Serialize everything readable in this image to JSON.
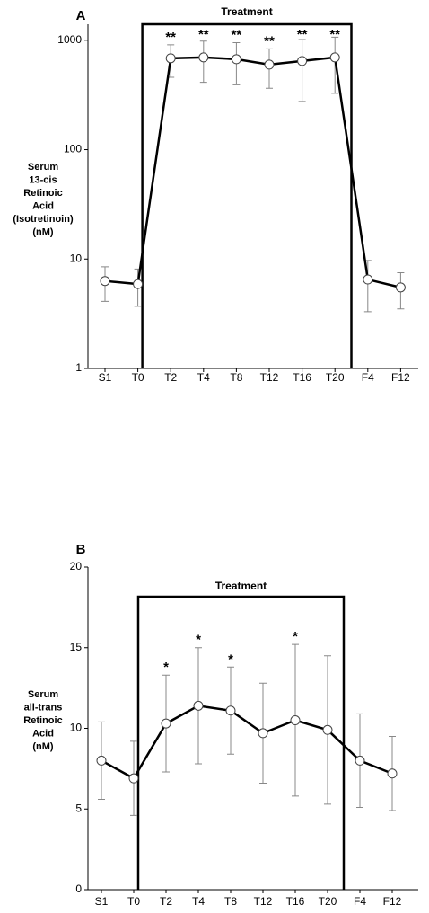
{
  "chart_data": [
    {
      "type": "line",
      "panel": "A",
      "box_label": "Treatment",
      "y_label_lines": [
        "Serum",
        "13-cis",
        "Retinoic",
        "Acid",
        "(Isotretinoin)",
        "(nM)"
      ],
      "categories": [
        "S1",
        "T0",
        "T2",
        "T4",
        "T8",
        "T12",
        "T16",
        "T20",
        "F4",
        "F12"
      ],
      "values": [
        6.3,
        5.9,
        684,
        697,
        671,
        599,
        646,
        697,
        6.5,
        5.5
      ],
      "errors": [
        2.2,
        2.2,
        225,
        285,
        280,
        235,
        370,
        370,
        3.2,
        2.0
      ],
      "annotations": [
        null,
        null,
        "**",
        "**",
        "**",
        "**",
        "**",
        "**",
        null,
        null
      ],
      "log_scale": true,
      "ylim": [
        1,
        1400
      ],
      "yticks": [
        1,
        10,
        100,
        1000
      ],
      "color": "#000000",
      "error_color": "#888888"
    },
    {
      "type": "line",
      "panel": "B",
      "box_label": "Treatment",
      "y_label_lines": [
        "Serum",
        "all-trans",
        "Retinoic",
        "Acid",
        "(nM)"
      ],
      "categories": [
        "S1",
        "T0",
        "T2",
        "T4",
        "T8",
        "T12",
        "T16",
        "T20",
        "F4",
        "F12"
      ],
      "values": [
        8.0,
        6.9,
        10.3,
        11.4,
        11.1,
        9.7,
        10.5,
        9.9,
        8.0,
        7.2
      ],
      "errors": [
        2.4,
        2.3,
        3.0,
        3.6,
        2.7,
        3.1,
        4.7,
        4.6,
        2.9,
        2.3
      ],
      "annotations": [
        null,
        null,
        "*",
        "*",
        "*",
        null,
        "*",
        null,
        null,
        null
      ],
      "log_scale": false,
      "ylim": [
        0,
        20
      ],
      "yticks": [
        0,
        5,
        10,
        15,
        20
      ],
      "color": "#000000",
      "error_color": "#888888"
    }
  ]
}
